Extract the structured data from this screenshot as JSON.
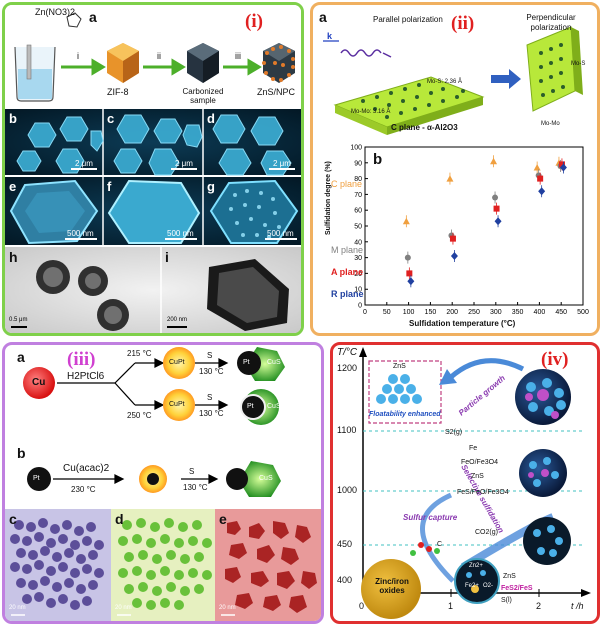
{
  "panel_i": {
    "roman": "(i)",
    "label_a": "a",
    "precursor": "Zn(NO3)2",
    "steps": [
      "i",
      "ii",
      "iii"
    ],
    "products": [
      "ZIF-8",
      "Carbonized sample",
      "ZnS/NPC"
    ],
    "sem_labels": [
      "b",
      "c",
      "d",
      "e",
      "f",
      "g",
      "h",
      "i"
    ],
    "scales": [
      "2 μm",
      "2 μm",
      "2 μm",
      "500 nm",
      "500 nm",
      "500 nm",
      "0.5 μm",
      "200 nm"
    ]
  },
  "panel_ii": {
    "roman": "(ii)",
    "label_a": "a",
    "label_b": "b",
    "parallel": "Parallel polarization",
    "perpendicular": "Perpendicular polarization",
    "k": "k",
    "mo_mo": "Mo-Mo: 3.16 Å",
    "mo_s": "Mo-S: 2.36 Å",
    "c_plane_sub": "C plane - α-Al2O3",
    "mo_s_right": "Mo-S",
    "mo_mo_right": "Mo-Mo",
    "chart_data": {
      "type": "scatter",
      "xlabel": "Sulfidation temperature (°C)",
      "ylabel": "Sulfidation degree (%)",
      "xlim": [
        0,
        500
      ],
      "ylim": [
        0,
        100
      ],
      "xticks": [
        0,
        50,
        100,
        150,
        200,
        250,
        300,
        350,
        400,
        450,
        500
      ],
      "yticks": [
        0,
        10,
        20,
        30,
        40,
        50,
        60,
        70,
        80,
        90,
        100
      ],
      "series": [
        {
          "name": "C plane",
          "color": "#f0a040",
          "x": [
            100,
            200,
            300,
            400,
            450
          ],
          "y": [
            53,
            80,
            91,
            87,
            90
          ]
        },
        {
          "name": "M plane",
          "color": "#808080",
          "x": [
            100,
            200,
            300,
            400,
            450
          ],
          "y": [
            30,
            44,
            68,
            82,
            88
          ]
        },
        {
          "name": "A plane",
          "color": "#e02020",
          "x": [
            100,
            200,
            300,
            400,
            450
          ],
          "y": [
            20,
            42,
            61,
            80,
            89
          ]
        },
        {
          "name": "R plane",
          "color": "#2040a0",
          "x": [
            100,
            200,
            300,
            400,
            450
          ],
          "y": [
            15,
            31,
            53,
            72,
            87
          ]
        }
      ]
    }
  },
  "panel_iii": {
    "roman": "(iii)",
    "label_a": "a",
    "label_b": "b",
    "cu": "Cu",
    "reagent_a": "H2PtCl6",
    "temp_hi": "215 °C",
    "temp_lo": "250 °C",
    "cupt": "CuPt",
    "s": "S",
    "s_temp": "130 °C",
    "pt": "Pt",
    "cus": "CuS",
    "reagent_b": "Cu(acac)2",
    "temp_b": "230 °C",
    "tem_labels": [
      "c",
      "d",
      "e"
    ],
    "scale": "20 nm"
  },
  "panel_iv": {
    "roman": "(iv)",
    "y_axis": "T/°C",
    "x_axis": "t /h",
    "yticks": [
      "1200",
      "1100",
      "1000",
      "450",
      "400"
    ],
    "xticks": [
      "0",
      "1",
      "2"
    ],
    "zns_top": "ZnS",
    "floatability": "Floatability enhanced",
    "particle_growth": "Particle growth",
    "selective": "Selective sulfidation",
    "sulfur_capture": "Sulfur capture",
    "s2g": "S2(g)",
    "fe": "Fe",
    "feo": "FeO/Fe3O4",
    "zns": "ZnS",
    "fes_line": "FeS/FeO/Fe3O4",
    "co2": "CO2(g)",
    "oxides": "Zinc/iron oxides",
    "zn2": "Zn2+",
    "fe2": "Fe2+",
    "o2": "O2-",
    "fes2": "FeS2/FeS",
    "sl": "S(l)",
    "c": "C"
  }
}
